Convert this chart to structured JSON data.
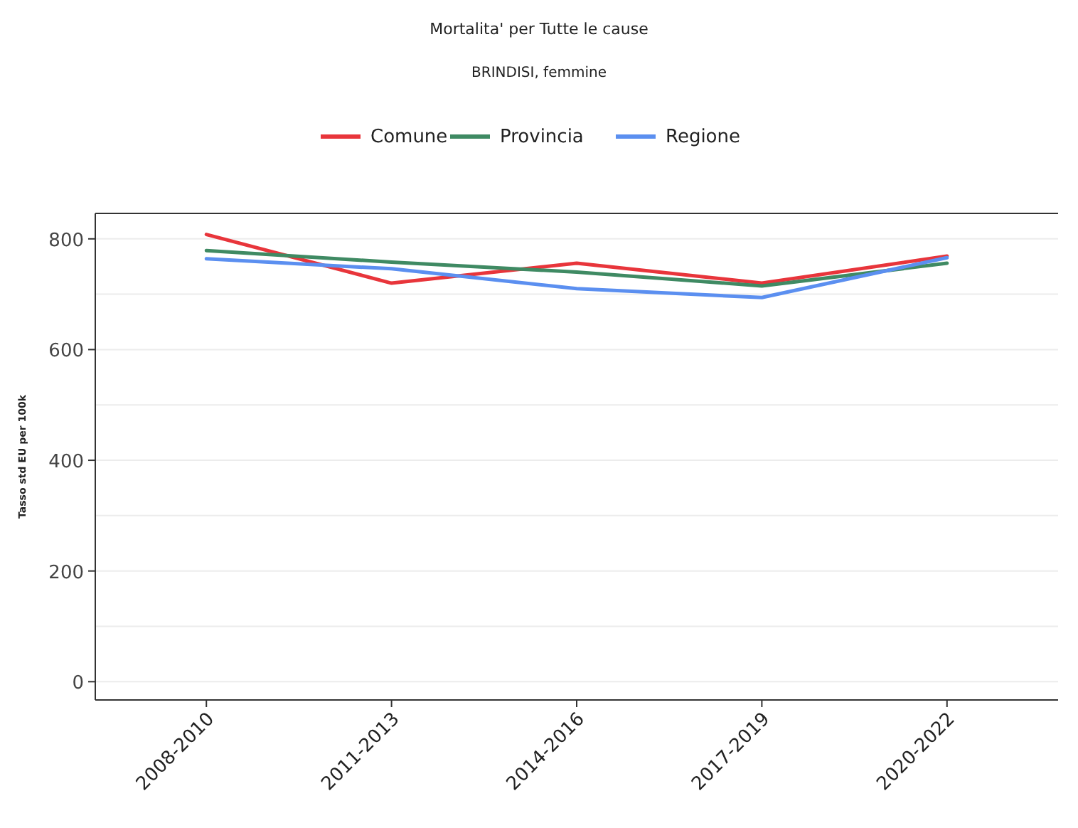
{
  "chart_data": {
    "type": "line",
    "title": "Mortalita' per Tutte le cause",
    "subtitle": "BRINDISI, femmine",
    "ylabel": "Tasso std EU per 100k",
    "categories": [
      "2008-2010",
      "2011-2013",
      "2014-2016",
      "2017-2019",
      "2020-2022"
    ],
    "series": [
      {
        "name": "Comune",
        "color": "#e8353b",
        "values": [
          808,
          720,
          756,
          720,
          769
        ]
      },
      {
        "name": "Provincia",
        "color": "#3f8a63",
        "values": [
          779,
          758,
          740,
          715,
          756
        ]
      },
      {
        "name": "Regione",
        "color": "#5b8ff0",
        "values": [
          764,
          746,
          710,
          694,
          766
        ]
      }
    ],
    "ylim": [
      -33,
      846
    ],
    "yticks": [
      0,
      {
        "value": 100,
        "label": null
      },
      200,
      {
        "value": 300,
        "label": null
      },
      400,
      {
        "value": 500,
        "label": null
      },
      600,
      {
        "value": 700,
        "label": null
      },
      800
    ],
    "grid": "y",
    "legend": "top",
    "marker": "none",
    "line_style": "solid"
  }
}
